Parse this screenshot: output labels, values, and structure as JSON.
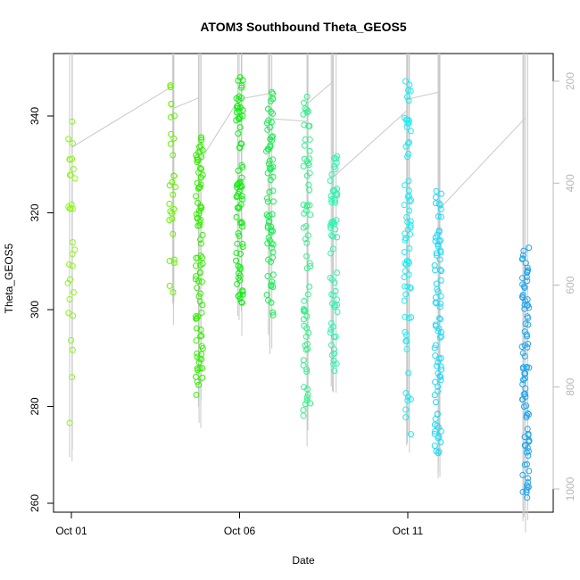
{
  "chart_data": {
    "type": "scatter",
    "title": "ATOM3 Southbound Theta_GEOS5",
    "xlabel": "Date",
    "ylabel": "Theta_GEOS5",
    "x_ticks": [
      "Oct 01",
      "Oct 06",
      "Oct 11"
    ],
    "y_ticks": [
      260,
      280,
      300,
      320,
      340
    ],
    "y2_ticks": [
      200,
      400,
      600,
      800,
      1000
    ],
    "xlim": [
      "2016-09-30",
      "2016-10-15"
    ],
    "ylim": [
      258,
      352
    ],
    "y2lim": [
      1060,
      150
    ],
    "y2_reversed": true,
    "grid": false,
    "legend": "none",
    "marker": "open-circle",
    "profile_line_color": "#c8c8c8",
    "series": [
      {
        "x": "2016-10-01",
        "color": "#8df520",
        "y_min": 276,
        "y_max": 339,
        "points": 30
      },
      {
        "x": "2016-10-04",
        "color": "#66f200",
        "y_min": 303,
        "y_max": 347,
        "points": 28
      },
      {
        "x": "2016-10-04.8",
        "color": "#33ee00",
        "y_min": 282,
        "y_max": 336,
        "points": 90
      },
      {
        "x": "2016-10-06",
        "color": "#14ec14",
        "y_min": 301,
        "y_max": 349,
        "points": 80
      },
      {
        "x": "2016-10-06.9",
        "color": "#1cee52",
        "y_min": 298,
        "y_max": 345,
        "points": 70
      },
      {
        "x": "2016-10-08",
        "color": "#33f08a",
        "y_min": 278,
        "y_max": 348,
        "points": 70
      },
      {
        "x": "2016-10-08.8",
        "color": "#33f2b0",
        "y_min": 286,
        "y_max": 333,
        "points": 60
      },
      {
        "x": "2016-10-11",
        "color": "#22eaf0",
        "y_min": 274,
        "y_max": 349,
        "points": 70
      },
      {
        "x": "2016-10-11.9",
        "color": "#22d8f4",
        "y_min": 270,
        "y_max": 326,
        "points": 80
      },
      {
        "x": "2016-10-14.5",
        "color": "#22a6ec",
        "y_min": 261,
        "y_max": 313,
        "points": 90
      }
    ]
  }
}
